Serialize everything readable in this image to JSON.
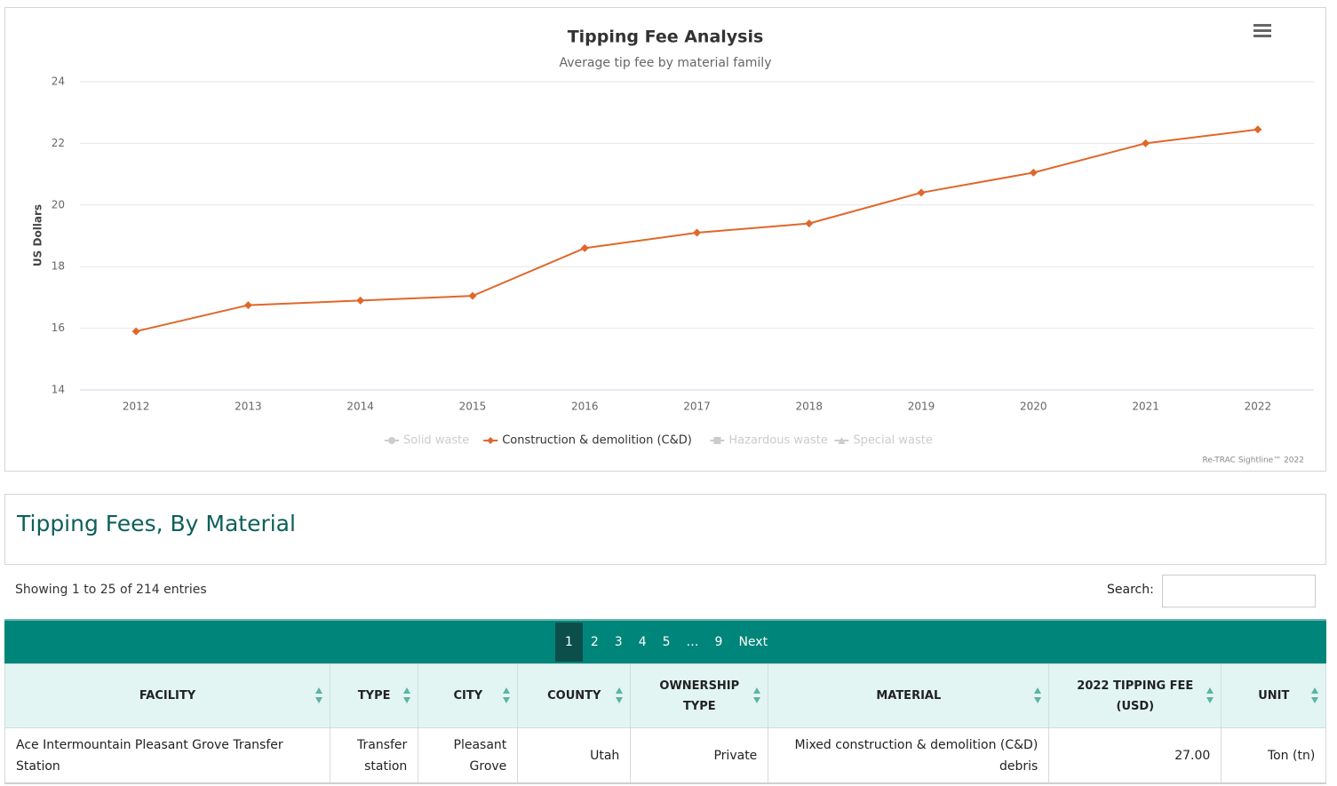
{
  "chart_data": {
    "type": "line",
    "title": "Tipping Fee Analysis",
    "subtitle": "Average tip fee by material family",
    "y_label": "US Dollars",
    "categories": [
      "2012",
      "2013",
      "2014",
      "2015",
      "2016",
      "2017",
      "2018",
      "2019",
      "2020",
      "2021",
      "2022"
    ],
    "series": [
      {
        "name": "Solid waste",
        "visible": false,
        "marker": "circle"
      },
      {
        "name": "Construction & demolition (C&D)",
        "visible": true,
        "marker": "diamond",
        "color": "#e0672b",
        "values": [
          15.9,
          16.75,
          16.9,
          17.05,
          18.6,
          19.1,
          19.4,
          20.4,
          21.05,
          22.0,
          22.45
        ]
      },
      {
        "name": "Hazardous waste",
        "visible": false,
        "marker": "square"
      },
      {
        "name": "Special waste",
        "visible": false,
        "marker": "triangle"
      }
    ],
    "ylim": [
      14,
      24
    ],
    "yticks": [
      14,
      16,
      18,
      20,
      22,
      24
    ],
    "grid": true,
    "credit": "Re-TRAC Sightline™ 2022"
  },
  "section": {
    "title": "Tipping Fees, By Material"
  },
  "info": "Showing 1 to 25 of 214 entries",
  "search": {
    "label": "Search:"
  },
  "pagination": [
    "1",
    "2",
    "3",
    "4",
    "5",
    "…",
    "9",
    "Next"
  ],
  "table": {
    "headers": [
      "FACILITY",
      "TYPE",
      "CITY",
      "COUNTY",
      "OWNERSHIP TYPE",
      "MATERIAL",
      "2022 TIPPING FEE (USD)",
      "UNIT"
    ],
    "rows": [
      [
        "Ace Intermountain Pleasant Grove Transfer Station",
        "Transfer station",
        "Pleasant Grove",
        "Utah",
        "Private",
        "Mixed construction & demolition (C&D) debris",
        "27.00",
        "Ton (tn)"
      ]
    ]
  }
}
